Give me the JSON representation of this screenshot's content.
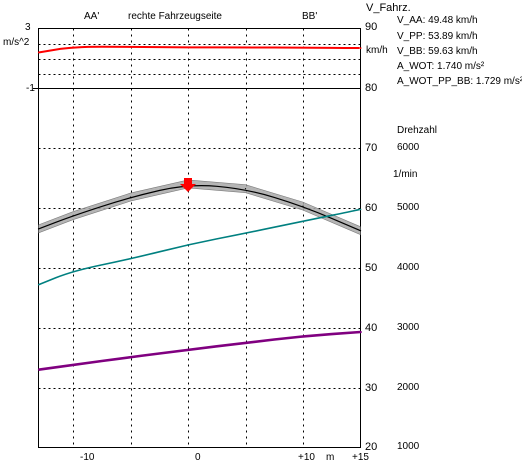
{
  "header": {
    "marker_aa": "AA'",
    "section_title": "rechte Fahrzeugseite",
    "marker_bb": "BB'"
  },
  "accel_axis": {
    "ticks": [
      "3",
      "-1"
    ],
    "unit": "m/s^2"
  },
  "speed_axis": {
    "title": "V_Fahrz.",
    "unit": "km/h",
    "ticks": [
      "90",
      "80",
      "70",
      "60",
      "50",
      "40",
      "30",
      "20"
    ]
  },
  "rpm_axis": {
    "title": "Drehzahl",
    "unit": "1/min",
    "ticks": [
      "6000",
      "5000",
      "4000",
      "3000",
      "2000",
      "1000"
    ]
  },
  "x_axis": {
    "ticks": [
      "-10",
      "0",
      "+10",
      "+15"
    ],
    "unit": "m"
  },
  "readouts": {
    "v_aa": "V_AA: 49.48 km/h",
    "v_pp": "V_PP: 53.89 km/h",
    "v_bb": "V_BB: 59.63 km/h",
    "a_wot": "A_WOT: 1.740 m/s²",
    "a_wot_pp_bb": "A_WOT_PP_BB: 1.729 m/s²"
  },
  "colors": {
    "accel_line": "#ff0000",
    "rpm_line": "#000000",
    "rpm_band": "#a9a9a9",
    "speed_line": "#008080",
    "lower_line": "#800080",
    "marker_arrow": "#ff0000"
  },
  "icons": {
    "position_marker": "down-arrow-icon"
  },
  "chart_data": {
    "type": "line",
    "x": [
      -13,
      -10,
      -5,
      0,
      5,
      10,
      15
    ],
    "x_unit": "m",
    "series": [
      {
        "axis": "m/s^2",
        "values": [
          1.4,
          1.78,
          1.78,
          1.74,
          1.74,
          1.72,
          1.7
        ]
      },
      {
        "axis": "1/min",
        "values": [
          4650,
          4870,
          5180,
          5400,
          5320,
          5030,
          4620
        ]
      },
      {
        "axis": "km/h",
        "values": [
          47.2,
          49.5,
          51.5,
          53.9,
          55.8,
          57.8,
          59.8
        ]
      },
      {
        "axis": "km/h",
        "values": [
          33.0,
          33.8,
          35.1,
          36.3,
          37.5,
          38.6,
          39.3
        ]
      }
    ],
    "xlim": [
      -13,
      15
    ],
    "accel_ylim": [
      -1,
      3
    ],
    "speed_ylim": [
      20,
      90
    ],
    "rpm_ylim": [
      1000,
      6000
    ],
    "marker_x": 0,
    "grid": true
  }
}
